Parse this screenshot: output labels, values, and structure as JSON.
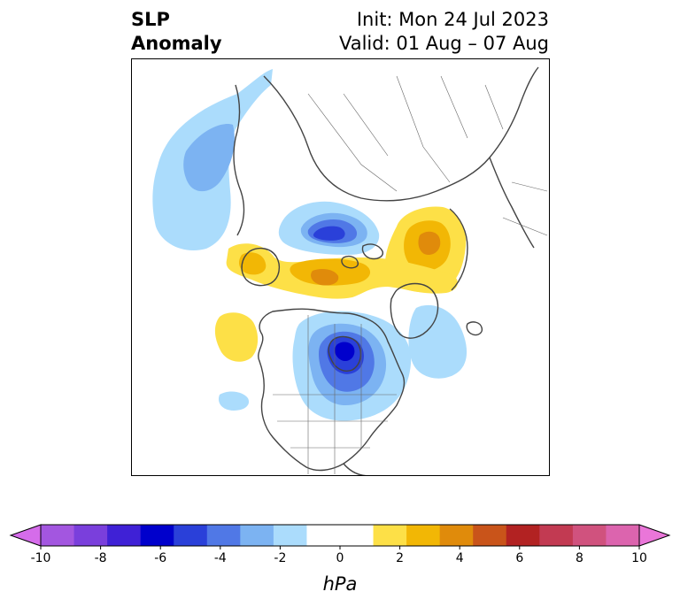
{
  "header": {
    "title_line1": "SLP",
    "title_line2": "Anomaly",
    "init": "Init: Mon 24 Jul 2023",
    "valid": "Valid: 01 Aug – 07 Aug"
  },
  "colorbar": {
    "unit": "hPa",
    "min": -10,
    "max": 10,
    "step": 1,
    "tick_labels": [
      "-10",
      "-8",
      "-6",
      "-4",
      "-2",
      "0",
      "2",
      "4",
      "6",
      "8",
      "10"
    ],
    "colors": [
      "#d56cea",
      "#a356e0",
      "#7a3fdc",
      "#3f21d6",
      "#0000cc",
      "#2a40d9",
      "#5078e6",
      "#7cb3f2",
      "#abdcfc",
      "#ffffff",
      "#ffffff",
      "#fde047",
      "#f2b705",
      "#e08b0b",
      "#c9541a",
      "#b22222",
      "#c23a52",
      "#d0527e",
      "#dc64ae",
      "#ea76d9"
    ],
    "extend": "both"
  },
  "map_data": {
    "projection": "north-polar-stereographic",
    "colors": {
      "neg_light": "#abdcfc",
      "neg_1": "#7cb3f2",
      "neg_2": "#5078e6",
      "neg_3": "#2a40d9",
      "neg_4": "#0000cc",
      "pos_light": "#fde047",
      "pos_1": "#f2b705",
      "pos_2": "#e08b0b",
      "coast": "#444444"
    }
  }
}
